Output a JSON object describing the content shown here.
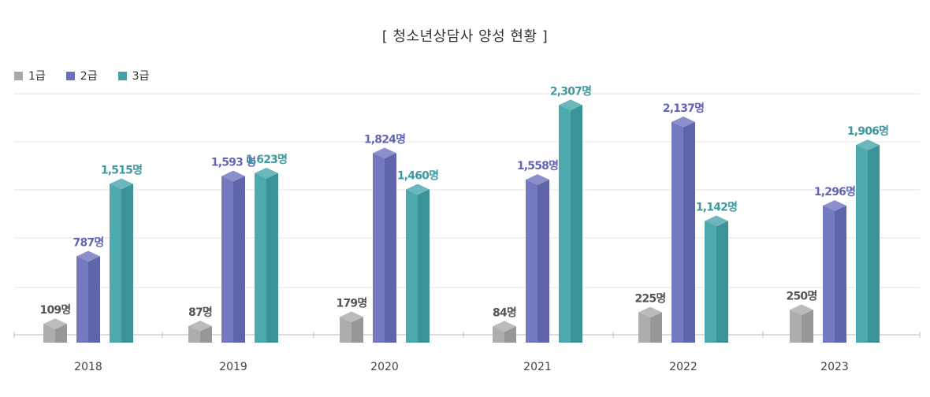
{
  "title": "[ 청소년상담사 양성 현황 ]",
  "colors": {
    "series": [
      "#a8a8a8",
      "#6b6fbd",
      "#41a3a8"
    ],
    "labels": [
      "#555555",
      "#6366b8",
      "#3f9aa0"
    ],
    "grid": "#e4e4e4",
    "axis": "#bbbbbb"
  },
  "chart_data": {
    "type": "bar",
    "title": "[ 청소년상담사 양성 현황 ]",
    "categories": [
      "2018",
      "2019",
      "2020",
      "2021",
      "2022",
      "2023"
    ],
    "series": [
      {
        "name": "1급",
        "values": [
          109,
          87,
          179,
          84,
          225,
          250
        ],
        "labels": [
          "109명",
          "87명",
          "179명",
          "84명",
          "225명",
          "250명"
        ]
      },
      {
        "name": "2급",
        "values": [
          787,
          1593,
          1824,
          1558,
          2137,
          1296
        ],
        "labels": [
          "787명",
          "1,593 명",
          "1,824명",
          "1,558명",
          "2,137명",
          "1,296명"
        ]
      },
      {
        "name": "3급",
        "values": [
          1515,
          1623,
          1460,
          2307,
          1142,
          1906
        ],
        "labels": [
          "1,515명",
          "1,623명",
          "1,460명",
          "2,307명",
          "1,142명",
          "1,906명"
        ]
      }
    ],
    "ylim": [
      0,
      2500
    ],
    "grid": true,
    "legend": "top-left",
    "xlabel": "",
    "ylabel": ""
  }
}
